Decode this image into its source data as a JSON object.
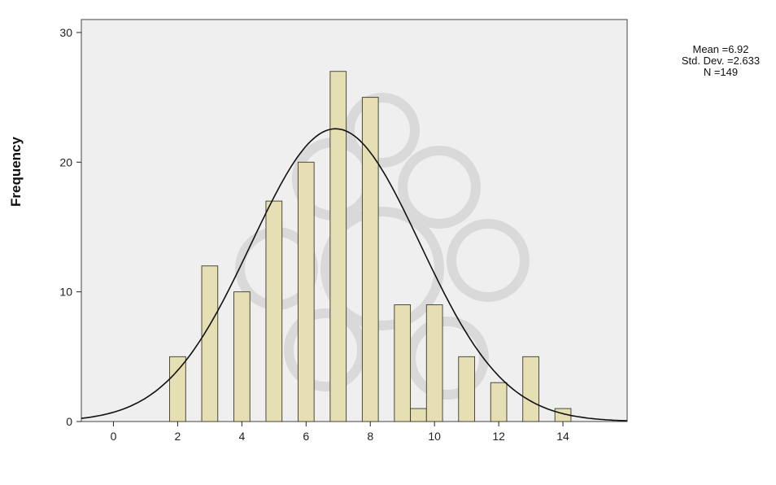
{
  "chart_data": {
    "type": "bar",
    "ylabel": "Frequency",
    "xlabel": "",
    "xlim": [
      -1,
      16
    ],
    "ylim": [
      0,
      31
    ],
    "x_ticks": [
      0,
      2,
      4,
      6,
      8,
      10,
      12,
      14
    ],
    "y_ticks": [
      0,
      10,
      20,
      30
    ],
    "grid": false,
    "x": [
      2,
      3,
      4,
      5,
      6,
      7,
      8,
      9,
      9.5,
      10,
      11,
      12,
      13,
      14
    ],
    "values": [
      5,
      12,
      10,
      17,
      20,
      27,
      25,
      9,
      1,
      9,
      5,
      3,
      5,
      1
    ],
    "normal_curve": {
      "mean": 6.92,
      "std_dev": 2.633,
      "n": 149
    },
    "stats_text": [
      "Mean =6.92",
      "Std. Dev. =2.633",
      "N =149"
    ],
    "colors": {
      "bar_fill": "#e5dfb3",
      "plot_bg": "#efefef",
      "curve": "#111111",
      "watermark": "#c8c8c8"
    }
  }
}
